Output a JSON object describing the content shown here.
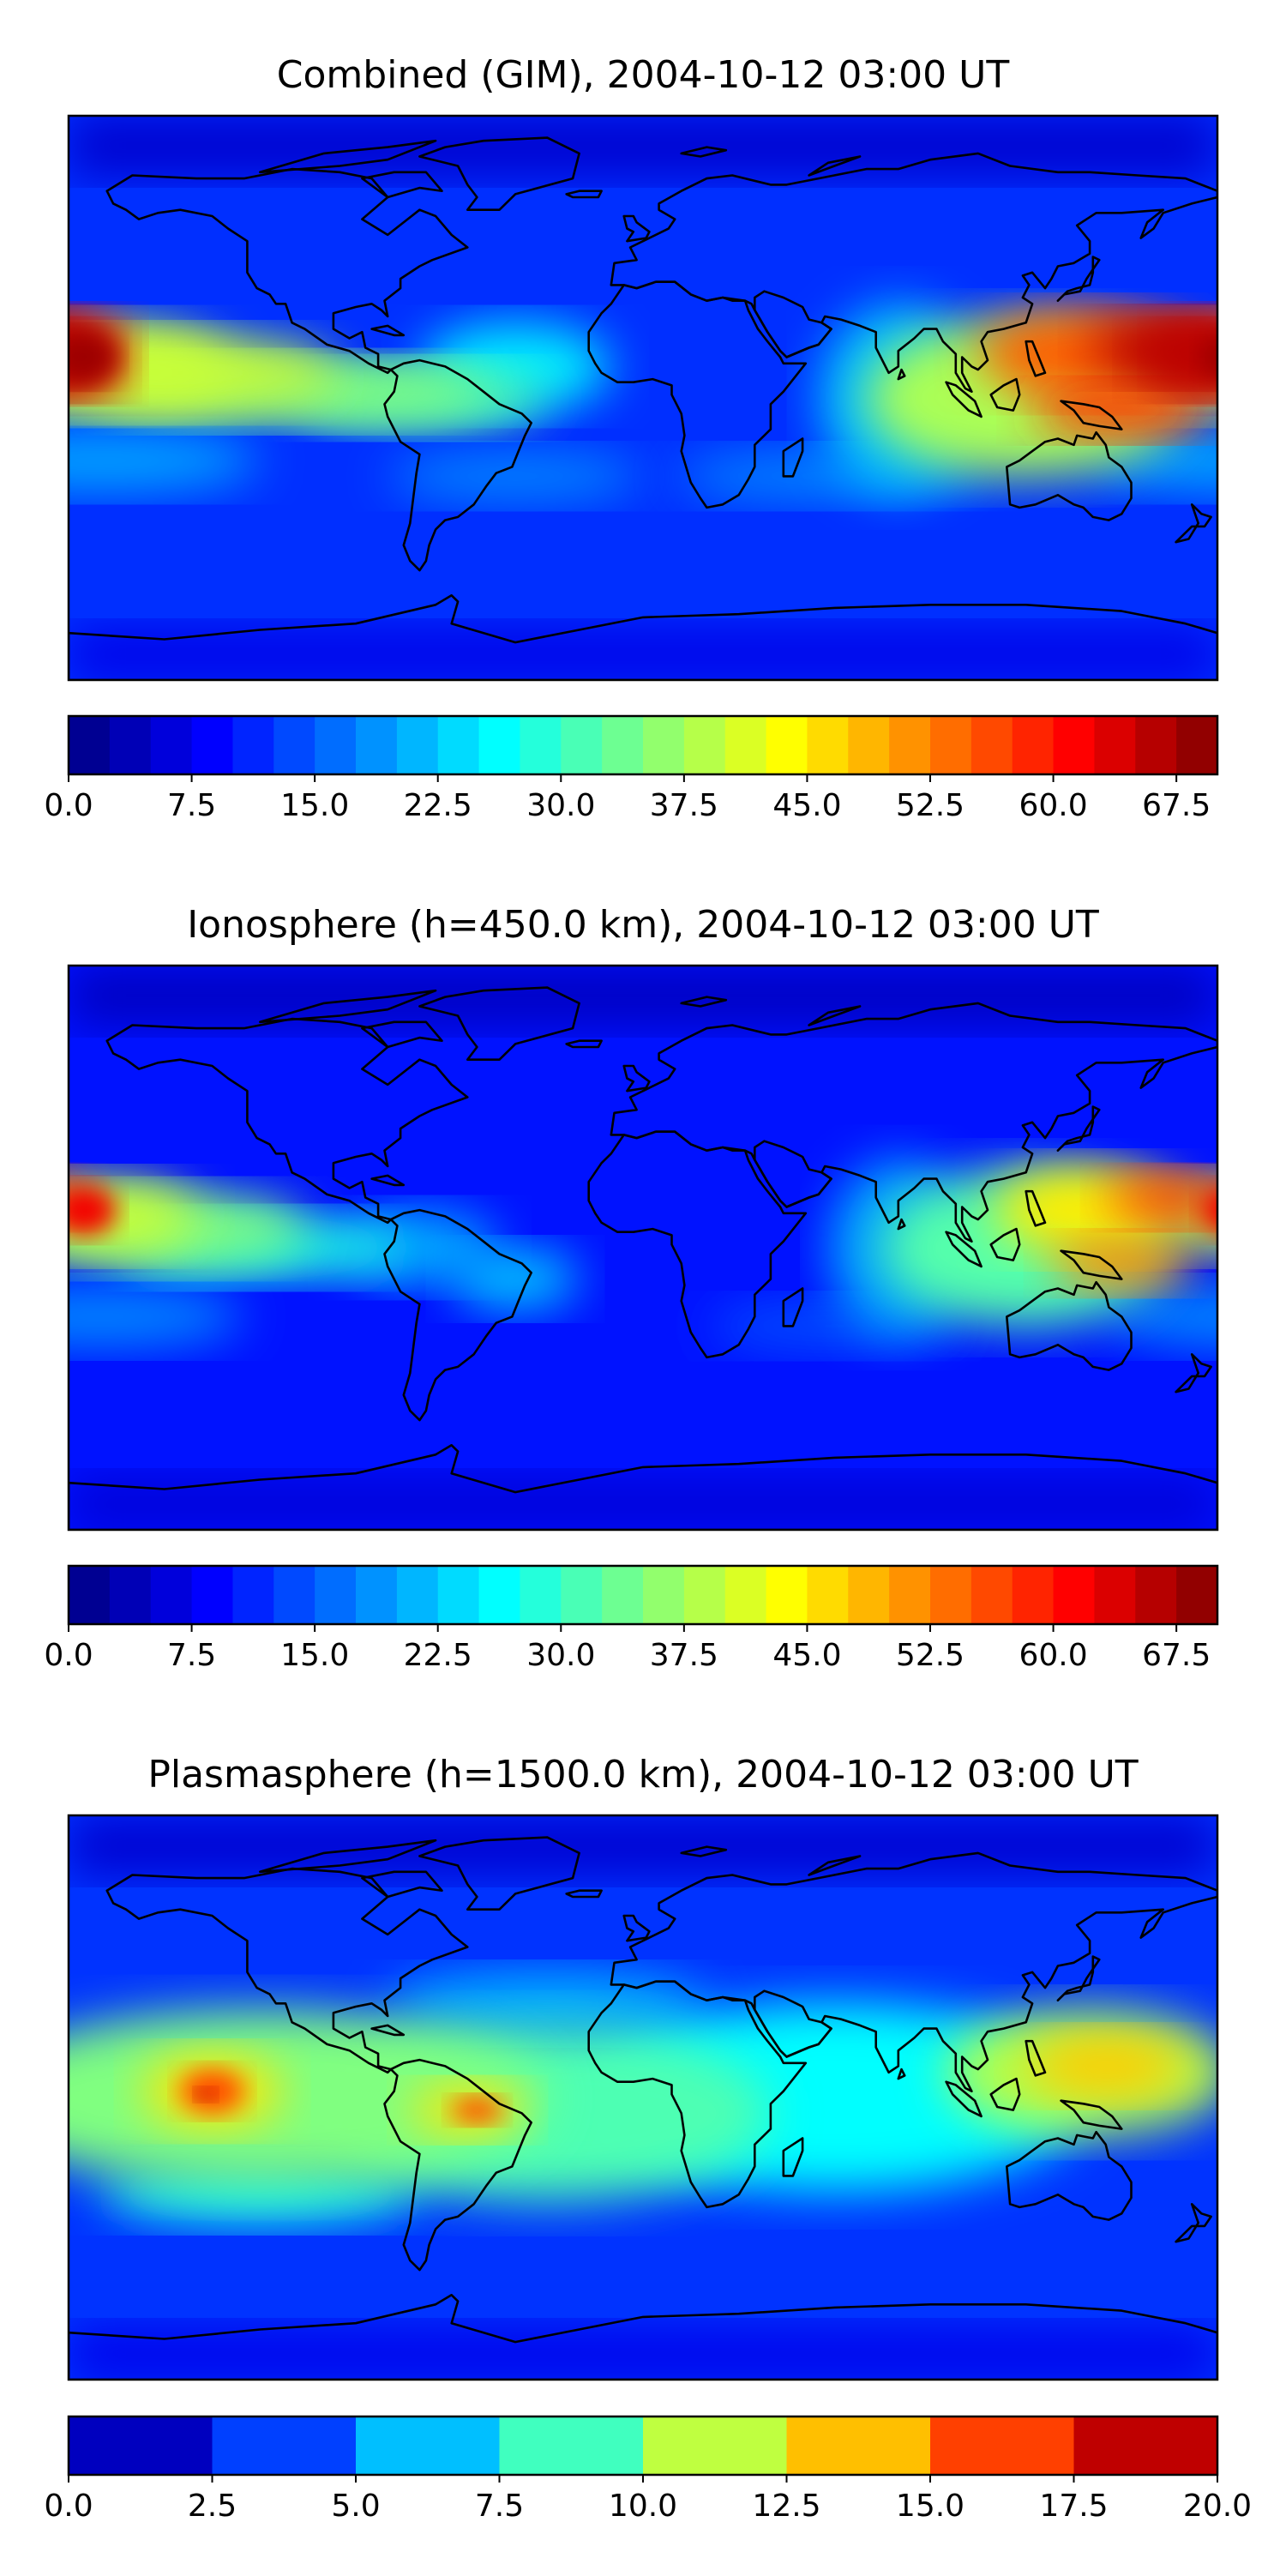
{
  "panels": [
    {
      "title": "Combined (GIM), 2004-10-12 03:00 UT",
      "colorbar": {
        "min": 0,
        "max": 70,
        "ticks": [
          "0.0",
          "7.5",
          "15.0",
          "22.5",
          "30.0",
          "37.5",
          "45.0",
          "52.5",
          "60.0",
          "67.5"
        ],
        "tick_values": [
          0,
          7.5,
          15,
          22.5,
          30,
          37.5,
          45,
          52.5,
          60,
          67.5
        ],
        "levels": 28
      },
      "field_notes": "dark-blue background; peak (~67) west of Pacific near date line and over W Pacific; equatorial Pacific band yellow-green"
    },
    {
      "title": "Ionosphere  (h=450.0 km), 2004-10-12 03:00 UT",
      "colorbar": {
        "min": 0,
        "max": 70,
        "ticks": [
          "0.0",
          "7.5",
          "15.0",
          "22.5",
          "30.0",
          "37.5",
          "45.0",
          "52.5",
          "60.0",
          "67.5"
        ],
        "tick_values": [
          0,
          7.5,
          15,
          22.5,
          30,
          37.5,
          45,
          52.5,
          60,
          67.5
        ],
        "levels": 28
      },
      "field_notes": "lower values than combined; peaks over W Pacific and central Pacific"
    },
    {
      "title": "Plasmasphere (h=1500.0 km), 2004-10-12 03:00 UT",
      "colorbar": {
        "min": 0,
        "max": 20,
        "ticks": [
          "0.0",
          "2.5",
          "5.0",
          "7.5",
          "10.0",
          "12.5",
          "15.0",
          "17.5",
          "20.0"
        ],
        "tick_values": [
          0,
          2.5,
          5,
          7.5,
          10,
          12.5,
          15,
          17.5,
          20
        ],
        "levels": 8
      },
      "field_notes": "broad equatorial band; peaks over E Pacific and Brazil"
    }
  ],
  "colormap": "jet"
}
